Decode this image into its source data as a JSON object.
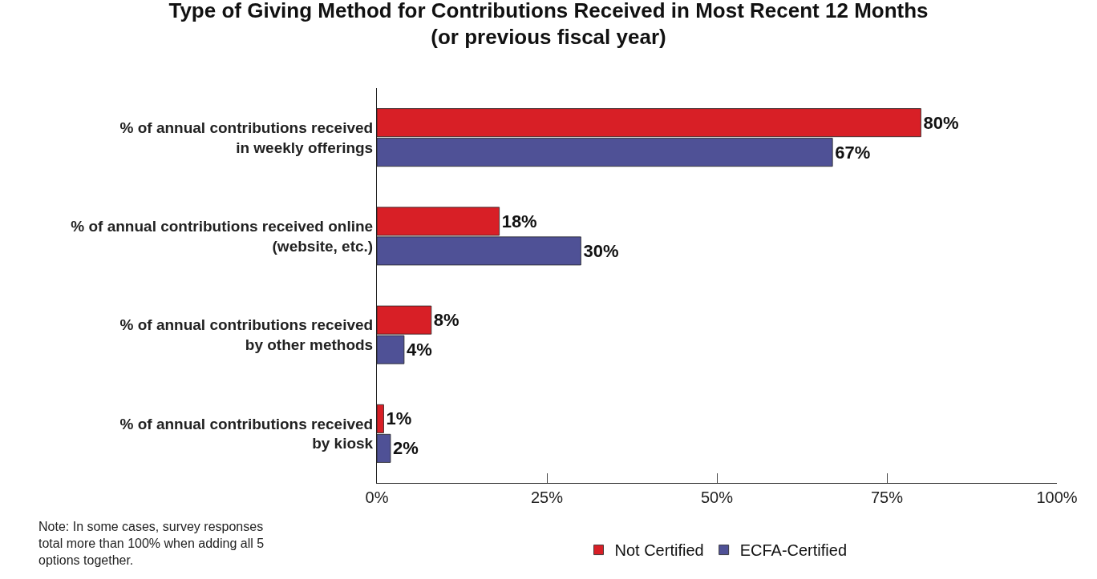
{
  "chart_data": {
    "type": "bar",
    "orientation": "horizontal",
    "title": "Type of Giving Method for Contributions Received in Most Recent 12 Months\n(or previous fiscal year)",
    "categories": [
      "% of annual contributions received\nin weekly offerings",
      "% of annual contributions received online\n(website, etc.)",
      "% of annual contributions received\nby other methods",
      "% of annual contributions received\nby kiosk"
    ],
    "series": [
      {
        "name": "Not Certified",
        "color": "#d81f26",
        "values": [
          80,
          18,
          8,
          1
        ],
        "value_labels": [
          "80%",
          "18%",
          "8%",
          "1%"
        ]
      },
      {
        "name": "ECFA-Certified",
        "color": "#4f5196",
        "values": [
          67,
          30,
          4,
          2
        ],
        "value_labels": [
          "67%",
          "30%",
          "4%",
          "2%"
        ]
      }
    ],
    "xlim": [
      0,
      100
    ],
    "xticks": [
      {
        "value": 0,
        "label": "0%"
      },
      {
        "value": 25,
        "label": "25%"
      },
      {
        "value": 50,
        "label": "50%"
      },
      {
        "value": 75,
        "label": "75%"
      },
      {
        "value": 100,
        "label": "100%"
      }
    ],
    "legend": "bottom",
    "annotations": [
      "Note: In some cases, survey responses\ntotal more than 100% when adding all 5\noptions together."
    ]
  }
}
